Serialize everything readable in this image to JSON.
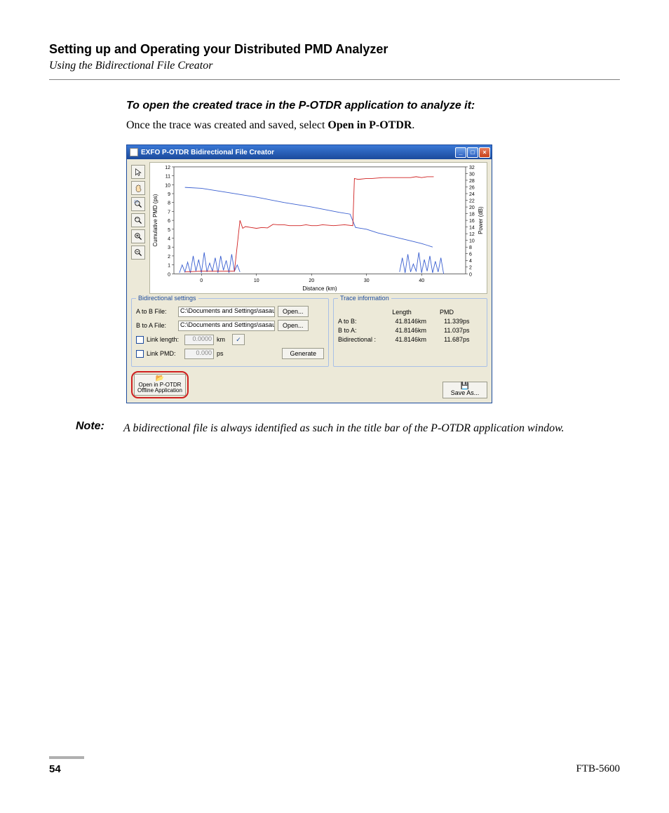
{
  "doc": {
    "section_title": "Setting up and Operating your Distributed PMD Analyzer",
    "section_subtitle": "Using the Bidirectional File Creator",
    "instruction_heading": "To open the created trace in the P-OTDR application to analyze it:",
    "instruction_text_a": "Once the trace was created and saved, select ",
    "instruction_bold": "Open in P-OTDR",
    "instruction_text_b": ".",
    "note_label": "Note:",
    "note_text": "A bidirectional file is always identified as such in the title bar of the P-OTDR application window.",
    "page_number": "54",
    "product": "FTB-5600"
  },
  "window": {
    "title": "EXFO P-OTDR Bidirectional File Creator",
    "titlebar_color_top": "#3a78d6",
    "titlebar_color_bottom": "#1b4a9c",
    "close_color": "#c8421b",
    "bg": "#ece9d8"
  },
  "chart": {
    "x_label": "Distance (km)",
    "y_left_label": "Cumulative PMD (ps)",
    "y_right_label": "Power (dB)",
    "xlim": [
      -5,
      48
    ],
    "xticks": [
      0,
      10,
      20,
      30,
      40
    ],
    "ylim_left": [
      0,
      12
    ],
    "yticks_left": [
      0,
      1,
      2,
      3,
      4,
      5,
      6,
      7,
      8,
      9,
      10,
      11,
      12
    ],
    "ylim_right": [
      0,
      32
    ],
    "yticks_right": [
      0,
      2,
      4,
      6,
      8,
      10,
      12,
      14,
      16,
      18,
      20,
      22,
      24,
      26,
      28,
      30,
      32
    ],
    "series": {
      "red": {
        "color": "#d02020",
        "points": [
          [
            -3,
            0.2
          ],
          [
            0,
            0.3
          ],
          [
            1,
            0.3
          ],
          [
            3,
            0.3
          ],
          [
            5,
            0.3
          ],
          [
            6,
            0.3
          ],
          [
            7,
            6.0
          ],
          [
            7.5,
            5.1
          ],
          [
            8,
            5.3
          ],
          [
            9,
            5.2
          ],
          [
            10,
            5.1
          ],
          [
            11,
            5.2
          ],
          [
            12,
            5.15
          ],
          [
            13,
            5.55
          ],
          [
            14,
            5.5
          ],
          [
            15,
            5.5
          ],
          [
            16,
            5.4
          ],
          [
            17,
            5.4
          ],
          [
            18,
            5.4
          ],
          [
            19,
            5.5
          ],
          [
            20,
            5.4
          ],
          [
            21,
            5.4
          ],
          [
            22,
            5.5
          ],
          [
            24,
            5.4
          ],
          [
            26,
            5.5
          ],
          [
            27.5,
            5.4
          ],
          [
            27.8,
            10.7
          ],
          [
            28.5,
            10.6
          ],
          [
            30,
            10.7
          ],
          [
            31,
            10.7
          ],
          [
            33,
            10.8
          ],
          [
            35,
            10.8
          ],
          [
            36,
            10.8
          ],
          [
            37,
            10.8
          ],
          [
            38,
            10.8
          ],
          [
            39,
            10.9
          ],
          [
            40,
            10.8
          ],
          [
            41,
            10.9
          ],
          [
            41.5,
            10.9
          ],
          [
            42,
            10.9
          ],
          [
            42.2,
            10.9
          ]
        ]
      },
      "blue_main": {
        "color": "#3a5fd0",
        "points": [
          [
            -3,
            9.7
          ],
          [
            0,
            9.6
          ],
          [
            5,
            9.1
          ],
          [
            10,
            8.6
          ],
          [
            15,
            8.0
          ],
          [
            20,
            7.5
          ],
          [
            25,
            6.9
          ],
          [
            27,
            6.7
          ],
          [
            28,
            5.2
          ],
          [
            30,
            5.0
          ],
          [
            32,
            4.6
          ],
          [
            34,
            4.3
          ],
          [
            36,
            4.0
          ],
          [
            38,
            3.7
          ],
          [
            40,
            3.4
          ],
          [
            41,
            3.2
          ],
          [
            42,
            3.0
          ]
        ]
      },
      "blue_noise": {
        "color": "#3a5fd0",
        "points": [
          [
            -4,
            0.1
          ],
          [
            -3.5,
            1.0
          ],
          [
            -3,
            0.2
          ],
          [
            -2.5,
            1.3
          ],
          [
            -2,
            0.1
          ],
          [
            -1.5,
            2.0
          ],
          [
            -1,
            0.3
          ],
          [
            -0.5,
            1.6
          ],
          [
            0,
            0.1
          ],
          [
            0.5,
            2.4
          ],
          [
            1,
            0.2
          ],
          [
            1.5,
            1.2
          ],
          [
            2,
            0.3
          ],
          [
            2.5,
            1.8
          ],
          [
            3,
            0.1
          ],
          [
            3.5,
            2.0
          ],
          [
            4,
            0.4
          ],
          [
            4.5,
            1.5
          ],
          [
            5,
            0.1
          ],
          [
            5.5,
            2.2
          ],
          [
            6,
            0.3
          ],
          [
            6.5,
            1.0
          ],
          [
            7,
            0.2
          ]
        ]
      },
      "blue_noise2": {
        "color": "#3a5fd0",
        "points": [
          [
            36,
            0.2
          ],
          [
            36.5,
            1.8
          ],
          [
            37,
            0.1
          ],
          [
            37.5,
            2.2
          ],
          [
            38,
            0.2
          ],
          [
            38.5,
            1.1
          ],
          [
            39,
            0.3
          ],
          [
            39.5,
            2.4
          ],
          [
            40,
            0.1
          ],
          [
            40.5,
            1.6
          ],
          [
            41,
            0.3
          ],
          [
            41.5,
            2.0
          ],
          [
            42,
            0.1
          ],
          [
            42.5,
            1.4
          ],
          [
            43,
            0.2
          ],
          [
            43.5,
            1.8
          ],
          [
            44,
            0.0
          ]
        ]
      }
    }
  },
  "settings": {
    "panel_title": "Bidirectional settings",
    "a_to_b_label": "A to B File:",
    "b_to_a_label": "B to A File:",
    "path_value": "C:\\Documents and Settings\\sasau1\\Desktc",
    "open_btn": "Open...",
    "link_length_label": "Link length:",
    "link_length_value": "0.0000",
    "link_length_unit": "km",
    "link_pmd_label": "Link PMD:",
    "link_pmd_value": "0.000",
    "link_pmd_unit": "ps",
    "generate_btn": "Generate"
  },
  "trace": {
    "panel_title": "Trace information",
    "col_length": "Length",
    "col_pmd": "PMD",
    "rows": [
      {
        "label": "A to B:",
        "len": "41.8146",
        "len_u": "km",
        "pmd": "11.339",
        "pmd_u": "ps"
      },
      {
        "label": "B to A:",
        "len": "41.8146",
        "len_u": "km",
        "pmd": "11.037",
        "pmd_u": "ps"
      },
      {
        "label": "Bidirectional :",
        "len": "41.8146",
        "len_u": "km",
        "pmd": "11.687",
        "pmd_u": "ps"
      }
    ]
  },
  "bottom": {
    "open_line1": "Open in P-OTDR",
    "open_line2": "Offline Application",
    "save_label": "Save As..."
  },
  "highlight_color": "#d02020"
}
